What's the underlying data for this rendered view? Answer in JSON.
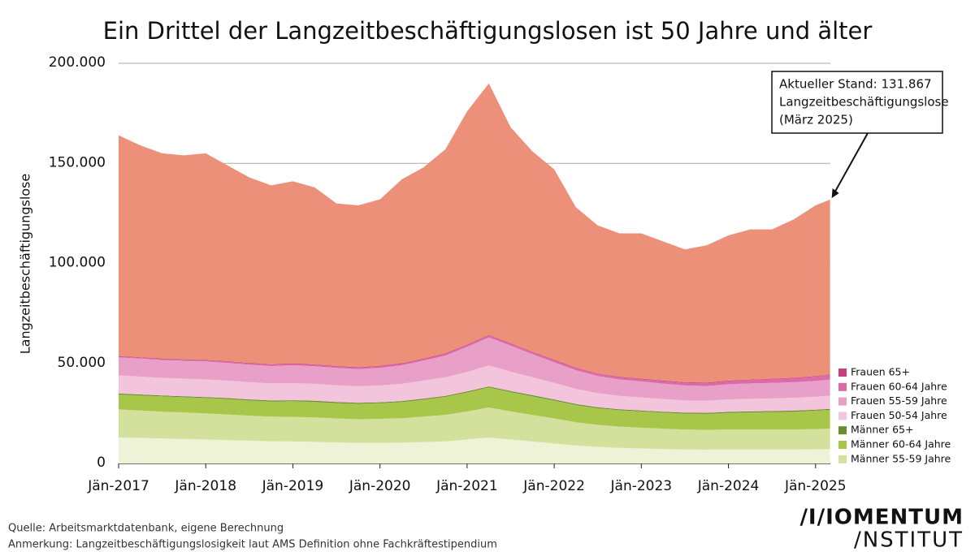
{
  "chart_data": {
    "type": "stacked_area",
    "title": "Ein Drittel der Langzeitbeschäftigungslosen ist 50 Jahre und älter",
    "y_label": "Langzeitbeschäftigungslose",
    "x": [
      2017,
      2017.25,
      2017.5,
      2017.75,
      2018,
      2018.25,
      2018.5,
      2018.75,
      2019,
      2019.25,
      2019.5,
      2019.75,
      2020,
      2020.25,
      2020.5,
      2020.75,
      2021,
      2021.25,
      2021.5,
      2021.75,
      2022,
      2022.25,
      2022.5,
      2022.75,
      2023,
      2023.25,
      2023.5,
      2023.75,
      2024,
      2024.25,
      2024.5,
      2024.75,
      2025,
      2025.1667
    ],
    "xlim": [
      2017,
      2025.17
    ],
    "xticks": [
      {
        "value": 2017,
        "label": "Jän-2017"
      },
      {
        "value": 2018,
        "label": "Jän-2018"
      },
      {
        "value": 2019,
        "label": "Jän-2019"
      },
      {
        "value": 2020,
        "label": "Jän-2020"
      },
      {
        "value": 2021,
        "label": "Jän-2021"
      },
      {
        "value": 2022,
        "label": "Jän-2022"
      },
      {
        "value": 2023,
        "label": "Jän-2023"
      },
      {
        "value": 2024,
        "label": "Jän-2024"
      },
      {
        "value": 2025,
        "label": "Jän-2025"
      }
    ],
    "ylim": [
      0,
      200000
    ],
    "yticks": [
      0,
      {
        "value": 50000,
        "label": "50.000"
      },
      {
        "value": 100000,
        "label": "100.000"
      },
      {
        "value": 150000,
        "label": "150.000"
      },
      {
        "value": 200000,
        "label": "200.000"
      }
    ],
    "grid": true,
    "series": [
      {
        "color": "#eef2d6",
        "values": [
          13000,
          12800,
          12500,
          12300,
          12000,
          11700,
          11400,
          11100,
          11000,
          10800,
          10500,
          10300,
          10300,
          10400,
          10700,
          11000,
          12000,
          13000,
          12000,
          11000,
          10000,
          9000,
          8300,
          7800,
          7500,
          7200,
          7000,
          6900,
          7000,
          7000,
          7000,
          7000,
          7100,
          7200
        ]
      },
      {
        "name": "Männer 55-59 Jahre",
        "color": "#d3e19c",
        "values": [
          14000,
          13700,
          13400,
          13200,
          13000,
          12800,
          12500,
          12300,
          12300,
          12200,
          12000,
          11800,
          12000,
          12200,
          12700,
          13300,
          14000,
          15000,
          14000,
          13200,
          12500,
          11600,
          11000,
          10600,
          10400,
          10200,
          10000,
          9900,
          10000,
          10000,
          10000,
          10000,
          10100,
          10200
        ]
      },
      {
        "name": "Männer 60-64 Jahre",
        "color": "#a8c74a",
        "values": [
          7500,
          7500,
          7600,
          7600,
          7700,
          7700,
          7600,
          7600,
          7800,
          7800,
          7700,
          7700,
          7800,
          8100,
          8500,
          9000,
          9500,
          10000,
          9700,
          9400,
          9000,
          8600,
          8300,
          8200,
          8100,
          8000,
          7900,
          8000,
          8300,
          8500,
          8700,
          8900,
          9200,
          9400
        ]
      },
      {
        "name": "Männer 65+",
        "color": "#6e8b32",
        "values": [
          500,
          500,
          500,
          500,
          500,
          500,
          500,
          500,
          500,
          500,
          500,
          500,
          500,
          500,
          500,
          500,
          500,
          500,
          500,
          500,
          500,
          500,
          500,
          500,
          500,
          500,
          500,
          500,
          500,
          500,
          500,
          500,
          500,
          500
        ]
      },
      {
        "name": "Frauen 50-54 Jahre",
        "color": "#f3c5dc",
        "values": [
          9000,
          8900,
          8800,
          8800,
          8800,
          8700,
          8600,
          8500,
          8600,
          8500,
          8400,
          8300,
          8400,
          8600,
          9000,
          9300,
          9800,
          10500,
          9700,
          9000,
          8300,
          7600,
          7000,
          6700,
          6500,
          6300,
          6100,
          6000,
          6200,
          6300,
          6300,
          6400,
          6500,
          6600
        ]
      },
      {
        "name": "Frauen 55-59 Jahre",
        "color": "#e9a0c8",
        "values": [
          9000,
          9000,
          8900,
          8900,
          9000,
          8900,
          8800,
          8700,
          8900,
          8800,
          8700,
          8600,
          8800,
          9300,
          10000,
          10800,
          12500,
          14000,
          13000,
          11500,
          10300,
          9300,
          8600,
          8200,
          8000,
          7700,
          7500,
          7400,
          7600,
          7700,
          7800,
          7800,
          7900,
          8000
        ]
      },
      {
        "name": "Frauen 60-64 Jahre",
        "color": "#dc6aa8",
        "values": [
          400,
          420,
          440,
          460,
          480,
          500,
          520,
          540,
          560,
          580,
          600,
          620,
          650,
          700,
          750,
          800,
          850,
          900,
          900,
          900,
          900,
          950,
          1000,
          1050,
          1100,
          1200,
          1300,
          1400,
          1500,
          1650,
          1800,
          1950,
          2100,
          2300
        ]
      },
      {
        "name": "Frauen 65+",
        "color": "#c8407f",
        "values": [
          300,
          300,
          300,
          300,
          300,
          300,
          300,
          300,
          300,
          300,
          300,
          300,
          300,
          300,
          300,
          300,
          300,
          300,
          300,
          300,
          300,
          300,
          300,
          300,
          300,
          300,
          300,
          300,
          300,
          300,
          300,
          300,
          300,
          300
        ]
      },
      {
        "color": "#ec907a",
        "values": [
          110300,
          105880,
          102560,
          101940,
          103220,
          97900,
          92780,
          89460,
          91040,
          88520,
          81300,
          80880,
          83250,
          91900,
          95550,
          102000,
          116550,
          125800,
          107900,
          100200,
          95200,
          80150,
          74000,
          71650,
          72600,
          69600,
          66400,
          68600,
          72600,
          75050,
          74600,
          79150,
          85300,
          87367
        ]
      }
    ],
    "annotation": [
      "Aktueller Stand: 131.867",
      "Langzeitbeschäftigungslose",
      "(März 2025)"
    ],
    "source": "Quelle: Arbeitsmarktdatenbank, eigene Berechnung",
    "note": "Anmerkung: Langzeitbeschäftigungslosigkeit laut AMS Definition ohne Fachkräftestipendium",
    "logo": [
      "/I/IOMENTUM",
      "/NSTITUT"
    ]
  }
}
